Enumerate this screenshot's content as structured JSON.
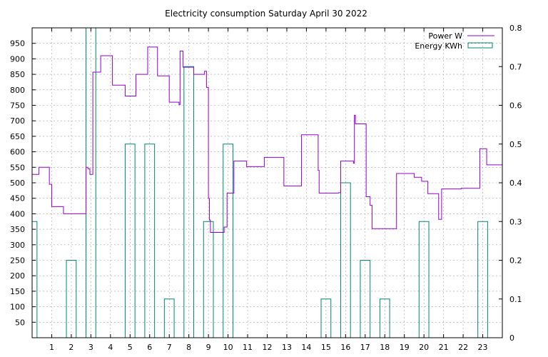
{
  "chart_data": {
    "type": "line",
    "title": "Electricity consumption Saturday April 30 2022",
    "xlabel": "",
    "ylabel": "",
    "y2label": "",
    "xlim": [
      0,
      24
    ],
    "ylim": [
      0,
      1000
    ],
    "y2lim": [
      0,
      0.8
    ],
    "grid": true,
    "legend_position": "top-right",
    "x_ticks": [
      1,
      2,
      3,
      4,
      5,
      6,
      7,
      8,
      9,
      10,
      11,
      12,
      13,
      14,
      15,
      16,
      17,
      18,
      19,
      20,
      21,
      22,
      23
    ],
    "y_ticks": [
      50,
      100,
      150,
      200,
      250,
      300,
      350,
      400,
      450,
      500,
      550,
      600,
      650,
      700,
      750,
      800,
      850,
      900,
      950
    ],
    "y2_ticks": [
      "0",
      "0.1",
      "0.2",
      "0.3",
      "0.4",
      "0.5",
      "0.6",
      "0.7",
      "0.8"
    ],
    "series": [
      {
        "name": "Power W",
        "axis": "left",
        "style": "steps",
        "color": "#9400d3",
        "x": [
          0,
          0.35,
          0.88,
          1.0,
          1.6,
          2.75,
          2.85,
          2.95,
          3.1,
          3.5,
          4.1,
          4.75,
          5.3,
          5.9,
          6.4,
          7.0,
          7.5,
          7.55,
          7.7,
          8.25,
          8.8,
          8.9,
          9.0,
          9.05,
          9.1,
          9.25,
          9.8,
          9.95,
          10.0,
          10.3,
          10.95,
          11.85,
          12.85,
          13.75,
          14.6,
          14.65,
          15.65,
          15.75,
          16.4,
          16.45,
          16.5,
          17.05,
          17.25,
          17.35,
          18.45,
          18.6,
          19.5,
          19.88,
          20.2,
          20.75,
          20.9,
          21.9,
          22.85,
          23.2,
          24
        ],
        "y": [
          527,
          550,
          495,
          423,
          400,
          550,
          545,
          527,
          857,
          910,
          815,
          780,
          850,
          938,
          845,
          760,
          752,
          925,
          873,
          850,
          860,
          808,
          450,
          380,
          340,
          340,
          357,
          467,
          467,
          570,
          552,
          582,
          490,
          655,
          540,
          467,
          468,
          570,
          563,
          718,
          690,
          455,
          427,
          352,
          352,
          530,
          518,
          505,
          465,
          382,
          480,
          482,
          610,
          558,
          433
        ]
      },
      {
        "name": "Energy KWh",
        "axis": "right",
        "style": "impulse-bars",
        "color": "#00886a",
        "x": [
          0,
          1,
          2,
          3,
          4,
          5,
          6,
          7,
          8,
          9,
          10,
          11,
          12,
          13,
          14,
          15,
          16,
          17,
          18,
          19,
          20,
          21,
          22,
          23
        ],
        "y": [
          0.3,
          0,
          0.2,
          0.8,
          0,
          0.5,
          0.5,
          0.1,
          0.7,
          0.3,
          0.5,
          0,
          0,
          0,
          0,
          0.1,
          0.4,
          0.2,
          0.1,
          0,
          0.3,
          0,
          0,
          0.3
        ]
      }
    ]
  }
}
